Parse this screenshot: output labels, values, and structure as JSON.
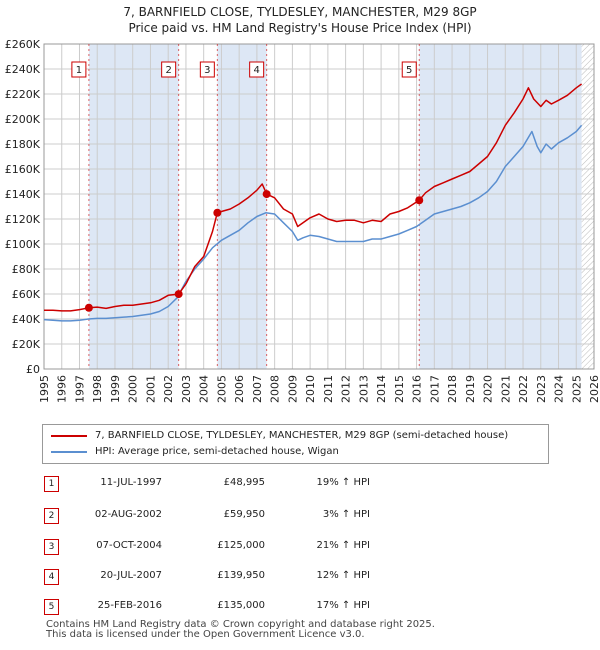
{
  "title_line1": "7, BARNFIELD CLOSE, TYLDESLEY, MANCHESTER, M29 8GP",
  "title_line2": "Price paid vs. HM Land Registry's House Price Index (HPI)",
  "legend": {
    "property_label": "7, BARNFIELD CLOSE, TYLDESLEY, MANCHESTER, M29 8GP (semi-detached house)",
    "hpi_label": "HPI: Average price, semi-detached house, Wigan"
  },
  "sales": [
    {
      "num": "1",
      "date": "11-JUL-1997",
      "price": "£48,995",
      "hpi": "19% ↑ HPI"
    },
    {
      "num": "2",
      "date": "02-AUG-2002",
      "price": "£59,950",
      "hpi": "3% ↑ HPI"
    },
    {
      "num": "3",
      "date": "07-OCT-2004",
      "price": "£125,000",
      "hpi": "21% ↑ HPI"
    },
    {
      "num": "4",
      "date": "20-JUL-2007",
      "price": "£139,950",
      "hpi": "12% ↑ HPI"
    },
    {
      "num": "5",
      "date": "25-FEB-2016",
      "price": "£135,000",
      "hpi": "17% ↑ HPI"
    }
  ],
  "footer_line1": "Contains HM Land Registry data © Crown copyright and database right 2025.",
  "footer_line2": "This data is licensed under the Open Government Licence v3.0.",
  "colors": {
    "property": "#cc0000",
    "hpi": "#5b8fd0",
    "shade": "#dde7f5",
    "grid": "#cccccc",
    "vline": "#cc0000"
  },
  "chart_data": {
    "type": "line",
    "xlim": [
      1995,
      2026
    ],
    "ylim": [
      0,
      260000
    ],
    "x_ticks": [
      1995,
      1996,
      1997,
      1998,
      1999,
      2000,
      2001,
      2002,
      2003,
      2004,
      2005,
      2006,
      2007,
      2008,
      2009,
      2010,
      2011,
      2012,
      2013,
      2014,
      2015,
      2016,
      2017,
      2018,
      2019,
      2020,
      2021,
      2022,
      2023,
      2024,
      2025,
      2026
    ],
    "y_ticks": [
      {
        "value": 0,
        "label": "£0"
      },
      {
        "value": 20000,
        "label": "£20K"
      },
      {
        "value": 40000,
        "label": "£40K"
      },
      {
        "value": 60000,
        "label": "£60K"
      },
      {
        "value": 80000,
        "label": "£80K"
      },
      {
        "value": 100000,
        "label": "£100K"
      },
      {
        "value": 120000,
        "label": "£120K"
      },
      {
        "value": 140000,
        "label": "£140K"
      },
      {
        "value": 160000,
        "label": "£160K"
      },
      {
        "value": 180000,
        "label": "£180K"
      },
      {
        "value": 200000,
        "label": "£200K"
      },
      {
        "value": 220000,
        "label": "£220K"
      },
      {
        "value": 240000,
        "label": "£240K"
      },
      {
        "value": 260000,
        "label": "£260K"
      }
    ],
    "grid": true,
    "shaded_regions": [
      [
        1997.53,
        2002.59
      ],
      [
        2004.77,
        2007.55
      ],
      [
        2016.15,
        2025.3
      ]
    ],
    "hatched_region": [
      2025.3,
      2026
    ],
    "series": [
      {
        "name": "7, BARNFIELD CLOSE, TYLDESLEY, MANCHESTER, M29 8GP (semi-detached house)",
        "x": [
          1995,
          1995.5,
          1996,
          1996.5,
          1997,
          1997.53,
          1998,
          1998.5,
          1999,
          1999.5,
          2000,
          2000.5,
          2001,
          2001.5,
          2002,
          2002.59,
          2003,
          2003.5,
          2004,
          2004.5,
          2004.77,
          2005,
          2005.5,
          2006,
          2006.5,
          2007,
          2007.3,
          2007.55,
          2008,
          2008.5,
          2009,
          2009.3,
          2009.6,
          2010,
          2010.5,
          2011,
          2011.5,
          2012,
          2012.5,
          2013,
          2013.5,
          2014,
          2014.5,
          2015,
          2015.5,
          2016.15,
          2016.5,
          2017,
          2017.5,
          2018,
          2018.5,
          2019,
          2019.5,
          2020,
          2020.5,
          2021,
          2021.5,
          2022,
          2022.3,
          2022.6,
          2023,
          2023.3,
          2023.6,
          2024,
          2024.5,
          2025,
          2025.3
        ],
        "y": [
          47000,
          47000,
          46500,
          46500,
          47500,
          48995,
          49500,
          48500,
          50000,
          51000,
          51000,
          52000,
          53000,
          55000,
          59000,
          59950,
          68000,
          82000,
          90000,
          110000,
          125000,
          126000,
          128000,
          132000,
          137000,
          143000,
          148000,
          139950,
          137000,
          128000,
          124000,
          114000,
          117000,
          121000,
          124000,
          120000,
          118000,
          119000,
          119000,
          117000,
          119000,
          118000,
          124000,
          126000,
          129000,
          135000,
          141000,
          146000,
          149000,
          152000,
          155000,
          158000,
          164000,
          170000,
          181000,
          195000,
          205000,
          216000,
          225000,
          216000,
          210000,
          215000,
          212000,
          215000,
          219000,
          225000,
          228000
        ]
      },
      {
        "name": "HPI: Average price, semi-detached house, Wigan",
        "x": [
          1995,
          1995.5,
          1996,
          1996.5,
          1997,
          1997.5,
          1998,
          1998.5,
          1999,
          1999.5,
          2000,
          2000.5,
          2001,
          2001.5,
          2002,
          2002.5,
          2003,
          2003.5,
          2004,
          2004.5,
          2005,
          2005.5,
          2006,
          2006.5,
          2007,
          2007.5,
          2008,
          2008.5,
          2009,
          2009.3,
          2009.6,
          2010,
          2010.5,
          2011,
          2011.5,
          2012,
          2012.5,
          2013,
          2013.5,
          2014,
          2014.5,
          2015,
          2015.5,
          2016,
          2016.5,
          2017,
          2017.5,
          2018,
          2018.5,
          2019,
          2019.5,
          2020,
          2020.5,
          2021,
          2021.5,
          2022,
          2022.5,
          2022.8,
          2023,
          2023.3,
          2023.6,
          2024,
          2024.5,
          2025,
          2025.3
        ],
        "y": [
          39500,
          39000,
          38500,
          38500,
          39000,
          40000,
          40500,
          40500,
          41000,
          41500,
          42000,
          43000,
          44000,
          46000,
          50000,
          57000,
          70000,
          80000,
          88000,
          97000,
          103000,
          107000,
          111000,
          117000,
          122000,
          125000,
          124000,
          117000,
          110000,
          103000,
          105000,
          107000,
          106000,
          104000,
          102000,
          102000,
          102000,
          102000,
          104000,
          104000,
          106000,
          108000,
          111000,
          114000,
          119000,
          124000,
          126000,
          128000,
          130000,
          133000,
          137000,
          142000,
          150000,
          162000,
          170000,
          178000,
          190000,
          178000,
          173000,
          180000,
          176000,
          181000,
          185000,
          190000,
          195000
        ]
      }
    ],
    "sale_points": [
      {
        "label": "1",
        "x": 1997.53,
        "y": 48995
      },
      {
        "label": "2",
        "x": 2002.59,
        "y": 59950
      },
      {
        "label": "3",
        "x": 2004.77,
        "y": 125000
      },
      {
        "label": "4",
        "x": 2007.55,
        "y": 139950
      },
      {
        "label": "5",
        "x": 2016.15,
        "y": 135000
      }
    ]
  }
}
